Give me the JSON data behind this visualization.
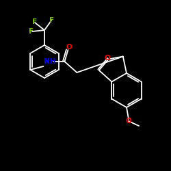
{
  "background_color": "#000000",
  "bond_color": "#ffffff",
  "atom_colors": {
    "F": "#6fbf00",
    "N": "#0000ff",
    "O": "#ff0000"
  },
  "figsize": [
    2.5,
    2.5
  ],
  "dpi": 100,
  "lw": 1.3
}
